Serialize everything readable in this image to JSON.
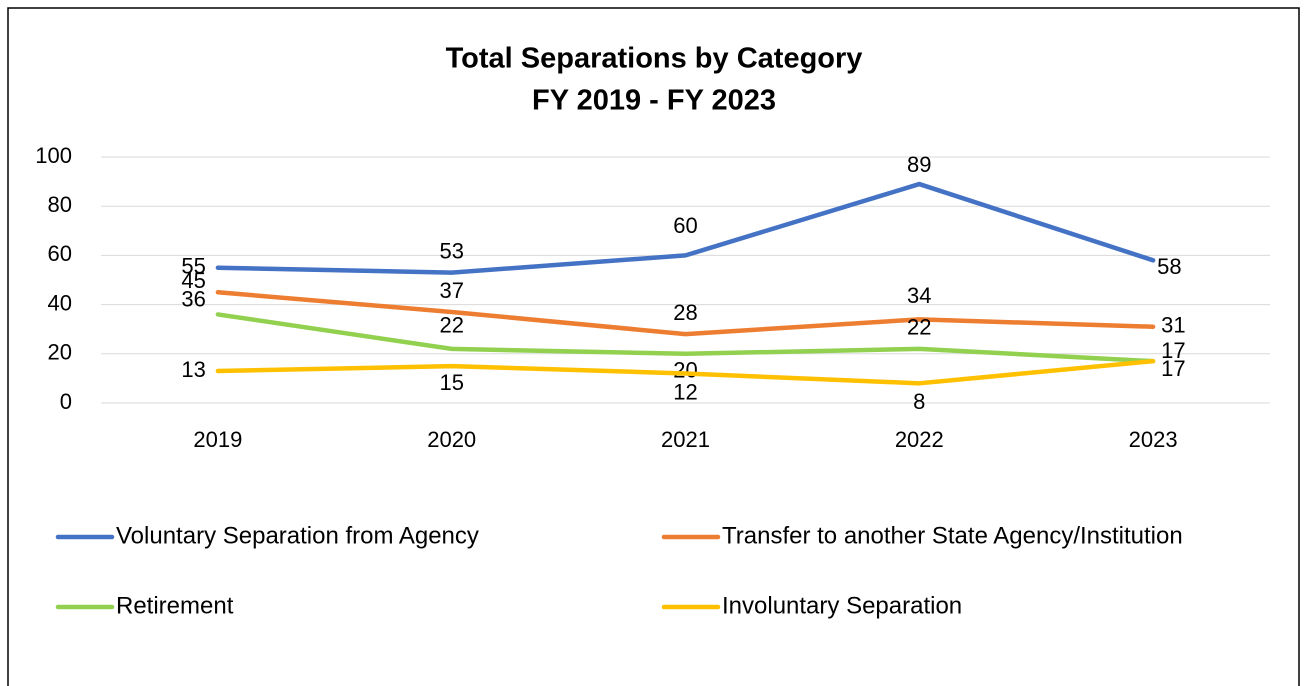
{
  "chart_data": {
    "type": "line",
    "title": "Total Separations by Category",
    "subtitle": "FY 2019 - FY 2023",
    "categories": [
      "2019",
      "2020",
      "2021",
      "2022",
      "2023"
    ],
    "series": [
      {
        "name": "Voluntary Separation from Agency",
        "color": "#4472c4",
        "values": [
          55,
          53,
          60,
          89,
          58
        ]
      },
      {
        "name": "Transfer to another State Agency/Institution",
        "color": "#ed7d31",
        "values": [
          45,
          37,
          28,
          34,
          31
        ]
      },
      {
        "name": "Retirement",
        "color": "#92d050",
        "values": [
          36,
          22,
          20,
          22,
          17
        ]
      },
      {
        "name": "Involuntary Separation",
        "color": "#ffc000",
        "values": [
          13,
          15,
          12,
          8,
          17
        ]
      }
    ],
    "ylim": [
      0,
      100
    ],
    "yticks": [
      0,
      20,
      40,
      60,
      80,
      100
    ],
    "grid": true,
    "legend": "bottom"
  }
}
